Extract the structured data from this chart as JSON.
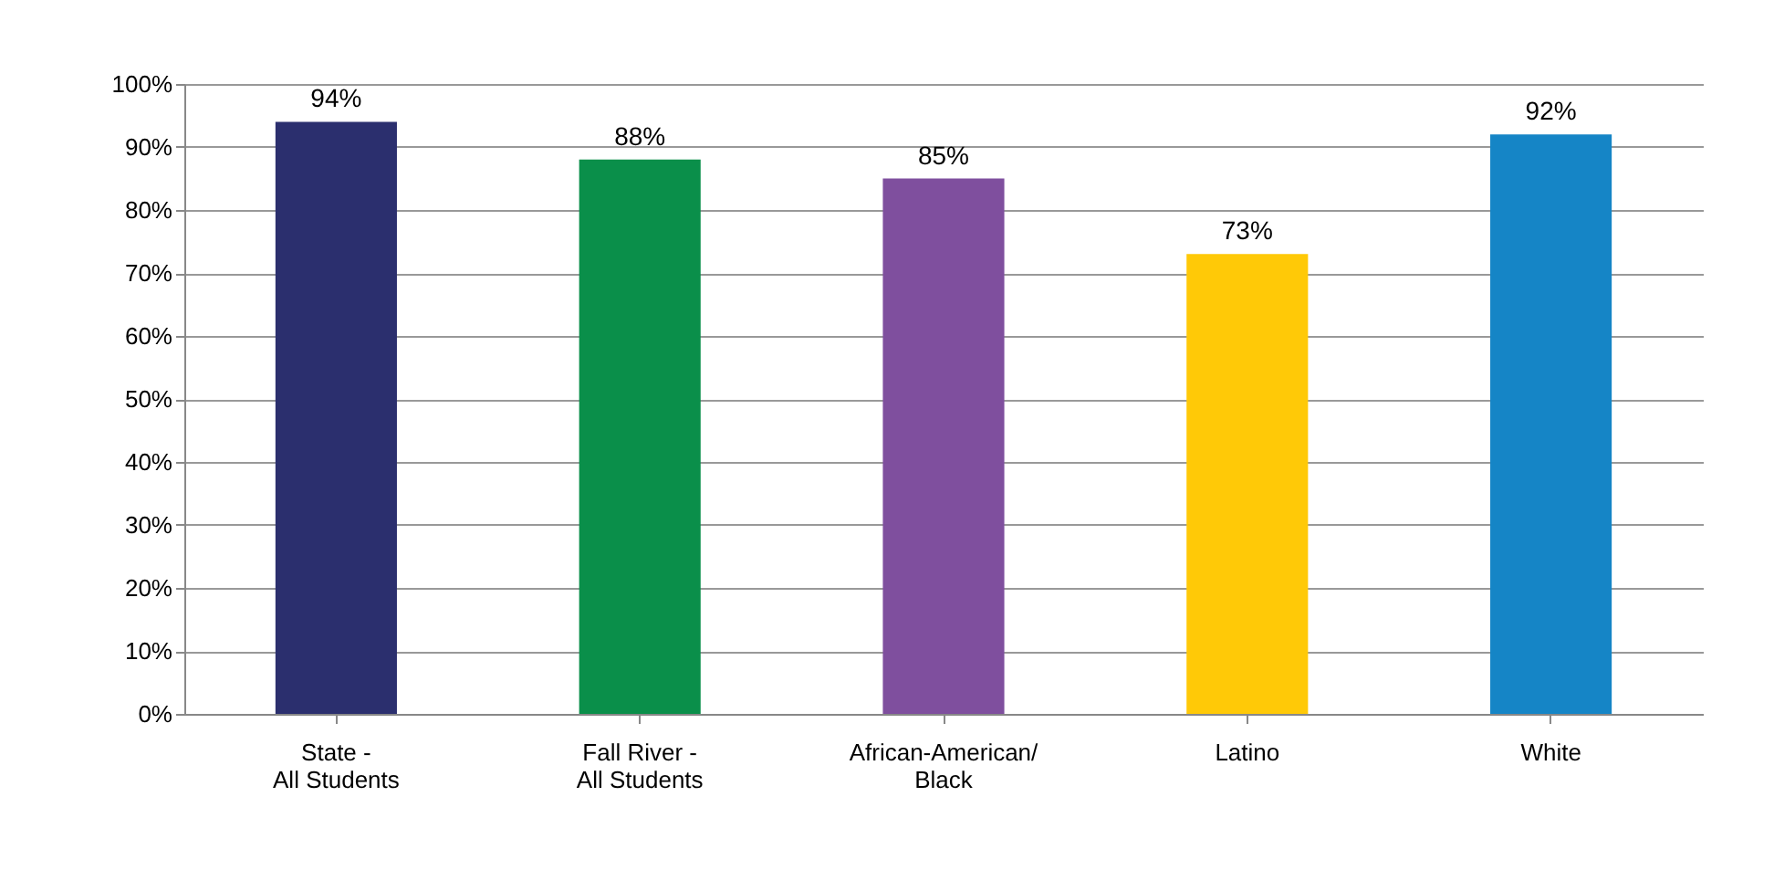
{
  "chart_data": {
    "type": "bar",
    "categories": [
      "State -\nAll Students",
      "Fall River -\nAll Students",
      "African-American/\nBlack",
      "Latino",
      "White"
    ],
    "values": [
      94,
      88,
      85,
      73,
      92
    ],
    "colors": [
      "#2b2f6e",
      "#0a8f4a",
      "#7f4f9e",
      "#ffc907",
      "#1585c6"
    ],
    "value_labels": [
      "94%",
      "88%",
      "85%",
      "73%",
      "92%"
    ],
    "ylim": [
      0,
      100
    ],
    "yticks": [
      {
        "value": 0,
        "label": "0%"
      },
      {
        "value": 10,
        "label": "10%"
      },
      {
        "value": 20,
        "label": "20%"
      },
      {
        "value": 30,
        "label": "30%"
      },
      {
        "value": 40,
        "label": "40%"
      },
      {
        "value": 50,
        "label": "50%"
      },
      {
        "value": 60,
        "label": "60%"
      },
      {
        "value": 70,
        "label": "70%"
      },
      {
        "value": 80,
        "label": "80%"
      },
      {
        "value": 90,
        "label": "90%"
      },
      {
        "value": 100,
        "label": "100%"
      }
    ],
    "grid": "y"
  }
}
